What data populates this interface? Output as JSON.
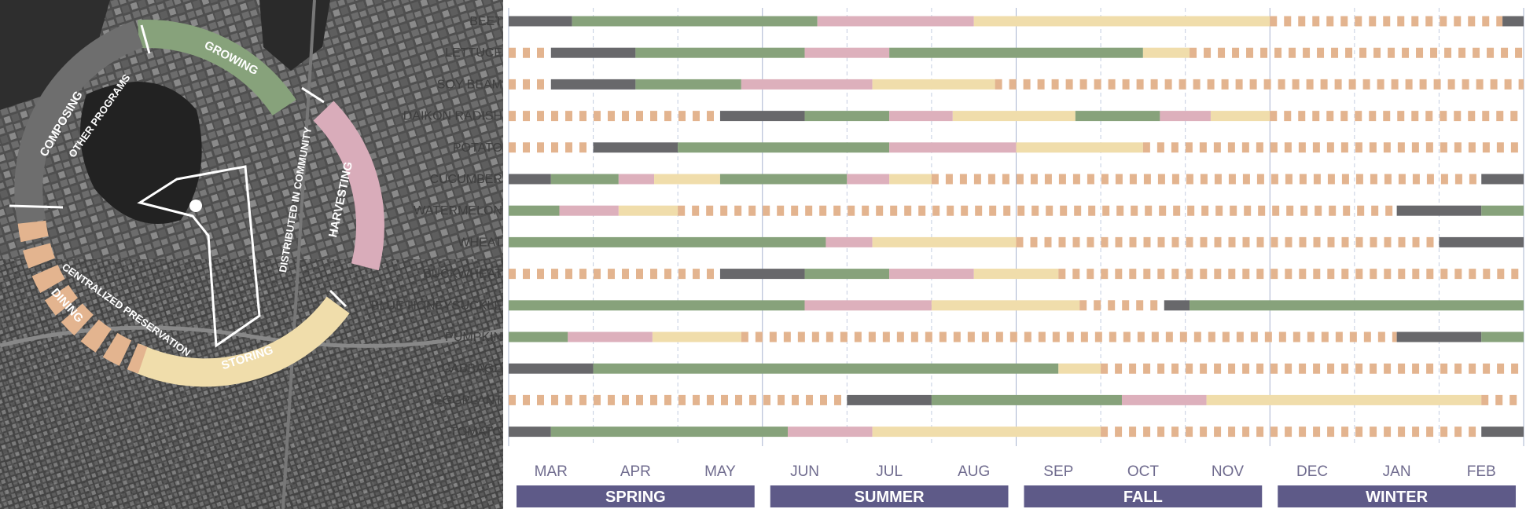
{
  "chart_data": {
    "type": "gantt",
    "title": "",
    "months": [
      "MAR",
      "APR",
      "MAY",
      "JUN",
      "JUL",
      "AUG",
      "SEP",
      "OCT",
      "NOV",
      "DEC",
      "JAN",
      "FEB"
    ],
    "seasons": [
      {
        "name": "SPRING",
        "start": 0,
        "end": 3
      },
      {
        "name": "SUMMER",
        "start": 3,
        "end": 6
      },
      {
        "name": "FALL",
        "start": 6,
        "end": 9
      },
      {
        "name": "WINTER",
        "start": 9,
        "end": 12
      }
    ],
    "stages": {
      "idle": {
        "color": "#e3b48f",
        "style": "dashed"
      },
      "prep": {
        "color": "#68686b",
        "style": "solid"
      },
      "growing": {
        "color": "#87a27b",
        "style": "solid"
      },
      "harvest": {
        "color": "#ddb0bc",
        "style": "solid"
      },
      "storing": {
        "color": "#f0ddab",
        "style": "solid"
      }
    },
    "units": "months from start of March",
    "crops": [
      {
        "name": "BEET",
        "segments": [
          [
            "prep",
            0,
            0.75
          ],
          [
            "growing",
            0.75,
            3.65
          ],
          [
            "harvest",
            3.65,
            5.5
          ],
          [
            "storing",
            5.5,
            9.0
          ],
          [
            "idle",
            9.0,
            11.75
          ],
          [
            "prep",
            11.75,
            12
          ]
        ]
      },
      {
        "name": "LETTUCE",
        "segments": [
          [
            "idle",
            0,
            0.5
          ],
          [
            "prep",
            0.5,
            1.5
          ],
          [
            "growing",
            1.5,
            3.5
          ],
          [
            "harvest",
            3.5,
            4.5
          ],
          [
            "growing",
            4.5,
            7.5
          ],
          [
            "storing",
            7.5,
            8.05
          ],
          [
            "idle",
            8.05,
            12
          ]
        ]
      },
      {
        "name": "SOY BEAM",
        "segments": [
          [
            "idle",
            0,
            0.5
          ],
          [
            "prep",
            0.5,
            1.5
          ],
          [
            "growing",
            1.5,
            2.75
          ],
          [
            "harvest",
            2.75,
            4.3
          ],
          [
            "storing",
            4.3,
            5.75
          ],
          [
            "idle",
            5.75,
            12
          ]
        ]
      },
      {
        "name": "DAIKON RADISH",
        "segments": [
          [
            "idle",
            0,
            2.5
          ],
          [
            "prep",
            2.5,
            3.5
          ],
          [
            "growing",
            3.5,
            4.5
          ],
          [
            "harvest",
            4.5,
            5.25
          ],
          [
            "storing",
            5.25,
            6.7
          ],
          [
            "growing",
            6.7,
            7.7
          ],
          [
            "harvest",
            7.7,
            8.3
          ],
          [
            "storing",
            8.3,
            9.0
          ],
          [
            "idle",
            9.0,
            12
          ]
        ]
      },
      {
        "name": "POTATO",
        "segments": [
          [
            "idle",
            0,
            1.0
          ],
          [
            "prep",
            1.0,
            2.0
          ],
          [
            "growing",
            2.0,
            4.5
          ],
          [
            "harvest",
            4.5,
            6.0
          ],
          [
            "storing",
            6.0,
            7.5
          ],
          [
            "idle",
            7.5,
            12
          ]
        ]
      },
      {
        "name": "CUCUMBER",
        "segments": [
          [
            "prep",
            0,
            0.5
          ],
          [
            "growing",
            0.5,
            1.3
          ],
          [
            "harvest",
            1.3,
            1.72
          ],
          [
            "storing",
            1.72,
            2.5
          ],
          [
            "growing",
            2.5,
            4.0
          ],
          [
            "harvest",
            4.0,
            4.5
          ],
          [
            "storing",
            4.5,
            5.0
          ],
          [
            "idle",
            5.0,
            11.5
          ],
          [
            "prep",
            11.5,
            12
          ]
        ]
      },
      {
        "name": "WATERMELON",
        "segments": [
          [
            "growing",
            0,
            0.6
          ],
          [
            "harvest",
            0.6,
            1.3
          ],
          [
            "storing",
            1.3,
            2.0
          ],
          [
            "idle",
            2.0,
            10.5
          ],
          [
            "prep",
            10.5,
            11.5
          ],
          [
            "growing",
            11.5,
            12
          ]
        ]
      },
      {
        "name": "WHEAT",
        "segments": [
          [
            "growing",
            0,
            3.75
          ],
          [
            "harvest",
            3.75,
            4.3
          ],
          [
            "storing",
            4.3,
            6.0
          ],
          [
            "idle",
            6.0,
            11.0
          ],
          [
            "prep",
            11.0,
            12
          ]
        ]
      },
      {
        "name": "BUCKWHEAT",
        "segments": [
          [
            "idle",
            0,
            2.5
          ],
          [
            "prep",
            2.5,
            3.5
          ],
          [
            "growing",
            3.5,
            4.5
          ],
          [
            "harvest",
            4.5,
            5.5
          ],
          [
            "storing",
            5.5,
            6.5
          ],
          [
            "idle",
            6.5,
            12
          ]
        ]
      },
      {
        "name": "BLUE HONEYSUCKLE",
        "segments": [
          [
            "growing",
            0,
            3.5
          ],
          [
            "harvest",
            3.5,
            5.0
          ],
          [
            "storing",
            5.0,
            6.75
          ],
          [
            "idle",
            6.75,
            7.75
          ],
          [
            "prep",
            7.75,
            8.05
          ],
          [
            "growing",
            8.05,
            12
          ]
        ]
      },
      {
        "name": "PUMPKIN",
        "segments": [
          [
            "growing",
            0,
            0.7
          ],
          [
            "harvest",
            0.7,
            1.7
          ],
          [
            "storing",
            1.7,
            2.75
          ],
          [
            "idle",
            2.75,
            10.5
          ],
          [
            "prep",
            10.5,
            11.5
          ],
          [
            "growing",
            11.5,
            12
          ]
        ]
      },
      {
        "name": "CABBAGE",
        "segments": [
          [
            "prep",
            0,
            1.0
          ],
          [
            "growing",
            1.0,
            6.5
          ],
          [
            "storing",
            6.5,
            7.0
          ],
          [
            "idle",
            7.0,
            12
          ]
        ]
      },
      {
        "name": "EGGPLANT",
        "segments": [
          [
            "idle",
            0,
            4.0
          ],
          [
            "prep",
            4.0,
            5.0
          ],
          [
            "growing",
            5.0,
            7.25
          ],
          [
            "harvest",
            7.25,
            8.25
          ],
          [
            "storing",
            8.25,
            11.5
          ],
          [
            "idle",
            11.5,
            12
          ]
        ]
      },
      {
        "name": "TOMATO",
        "segments": [
          [
            "prep",
            0,
            0.5
          ],
          [
            "growing",
            0.5,
            3.3
          ],
          [
            "harvest",
            3.3,
            4.3
          ],
          [
            "storing",
            4.3,
            7.0
          ],
          [
            "idle",
            7.0,
            11.5
          ],
          [
            "prep",
            11.5,
            12
          ]
        ]
      }
    ]
  },
  "ring": {
    "labels": [
      "GROWING",
      "HARVESTING",
      "STORING",
      "DINING",
      "COMPOSING"
    ],
    "inner_labels": [
      "OTHER PROGRAMS",
      "DISTRIBUTED IN COMMUNITY",
      "CENTRALIZED PRESERVATION"
    ]
  }
}
